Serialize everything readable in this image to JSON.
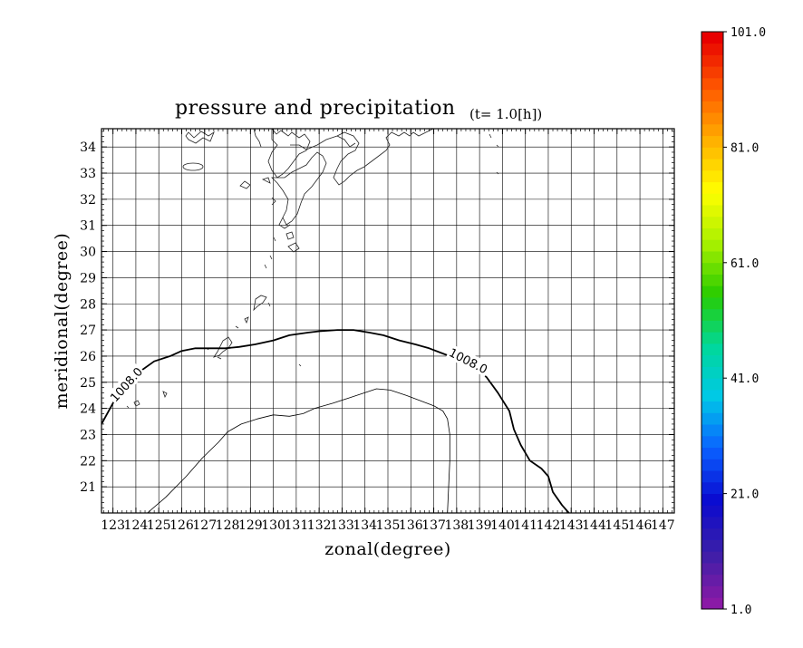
{
  "chart_data": {
    "type": "contour-map",
    "title": "pressure and precipitation",
    "time_label": "(t=   1.0[h])",
    "xlabel": "zonal(degree)",
    "ylabel": "meridional(degree)",
    "xlim": [
      122.5,
      147.5
    ],
    "ylim": [
      20.0,
      34.7
    ],
    "x_ticks": [
      "123",
      "124",
      "125",
      "126",
      "127",
      "128",
      "129",
      "130",
      "131",
      "132",
      "133",
      "134",
      "135",
      "136",
      "137",
      "138",
      "139",
      "140",
      "141",
      "142",
      "143",
      "144",
      "145",
      "146",
      "147"
    ],
    "y_ticks": [
      "21",
      "22",
      "23",
      "24",
      "25",
      "26",
      "27",
      "28",
      "29",
      "30",
      "31",
      "32",
      "33",
      "34"
    ],
    "grid": true,
    "contours": [
      {
        "level": "1008.0",
        "style": "thick",
        "points": [
          [
            122.5,
            23.4
          ],
          [
            123.0,
            24.2
          ],
          [
            123.3,
            24.6
          ],
          [
            124.0,
            25.3
          ],
          [
            124.8,
            25.8
          ],
          [
            125.5,
            26.0
          ],
          [
            126.0,
            26.2
          ],
          [
            126.6,
            26.3
          ],
          [
            127.3,
            26.3
          ],
          [
            127.9,
            26.3
          ],
          [
            128.5,
            26.35
          ],
          [
            129.2,
            26.45
          ],
          [
            130.0,
            26.6
          ],
          [
            130.7,
            26.8
          ],
          [
            131.5,
            26.9
          ],
          [
            132.0,
            26.95
          ],
          [
            132.8,
            27.0
          ],
          [
            133.5,
            27.0
          ],
          [
            134.2,
            26.9
          ],
          [
            134.8,
            26.8
          ],
          [
            135.5,
            26.6
          ],
          [
            136.2,
            26.45
          ],
          [
            136.8,
            26.3
          ],
          [
            137.4,
            26.1
          ],
          [
            138.0,
            25.9
          ],
          [
            138.6,
            25.6
          ],
          [
            139.3,
            25.2
          ],
          [
            139.8,
            24.6
          ],
          [
            140.3,
            23.9
          ],
          [
            140.5,
            23.2
          ],
          [
            140.8,
            22.6
          ],
          [
            141.2,
            22.0
          ],
          [
            141.7,
            21.7
          ],
          [
            142.0,
            21.4
          ],
          [
            142.2,
            20.8
          ],
          [
            142.6,
            20.3
          ],
          [
            142.9,
            20.0
          ]
        ],
        "label_positions": [
          [
            123.6,
            24.9
          ],
          [
            138.5,
            25.8
          ]
        ]
      },
      {
        "level": "",
        "style": "thin",
        "points": [
          [
            124.5,
            20.0
          ],
          [
            125.3,
            20.6
          ],
          [
            126.2,
            21.4
          ],
          [
            126.9,
            22.1
          ],
          [
            127.6,
            22.7
          ],
          [
            128.0,
            23.1
          ],
          [
            128.6,
            23.4
          ],
          [
            129.3,
            23.6
          ],
          [
            130.0,
            23.75
          ],
          [
            130.7,
            23.7
          ],
          [
            131.3,
            23.8
          ],
          [
            131.8,
            24.0
          ],
          [
            132.6,
            24.2
          ],
          [
            133.3,
            24.4
          ],
          [
            134.0,
            24.6
          ],
          [
            134.5,
            24.75
          ],
          [
            135.1,
            24.7
          ],
          [
            135.8,
            24.5
          ],
          [
            136.4,
            24.3
          ],
          [
            137.0,
            24.1
          ],
          [
            137.4,
            23.9
          ],
          [
            137.6,
            23.6
          ],
          [
            137.7,
            23.0
          ],
          [
            137.7,
            22.0
          ],
          [
            137.65,
            21.0
          ],
          [
            137.6,
            20.0
          ]
        ]
      }
    ],
    "colorbar": {
      "labels": [
        "101.0",
        "81.0",
        "61.0",
        "41.0",
        "21.0",
        "1.0"
      ],
      "min": 1.0,
      "max": 101.0,
      "levels": 50,
      "colormap": "rainbow",
      "colors": [
        "#8a1aa6",
        "#3a1fa8",
        "#0a0ad0",
        "#0a60ff",
        "#00c8e8",
        "#00d89a",
        "#28cc00",
        "#a8f000",
        "#ffff00",
        "#ffb000",
        "#ff5a00",
        "#e80000"
      ]
    }
  }
}
